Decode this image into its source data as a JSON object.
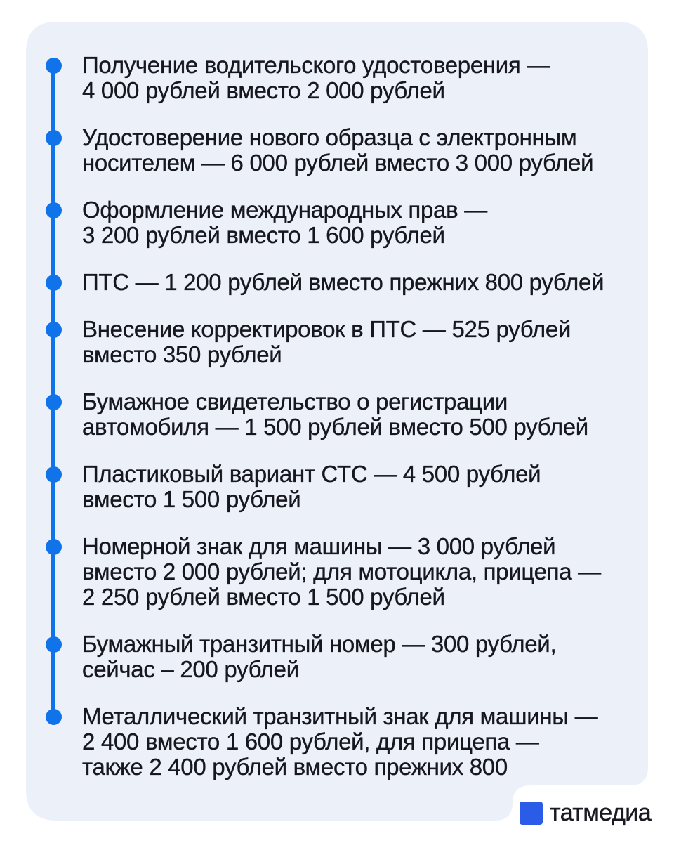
{
  "card": {
    "background_color": "#EBF0F9",
    "page_background_color": "#FFFFFF"
  },
  "timeline": {
    "dot_color": "#1173E9",
    "line_color": "#1173E9",
    "text_color": "#17171F"
  },
  "items": [
    {
      "text": "Получение водительского удостоверения —\n4 000 рублей вместо 2 000 рублей"
    },
    {
      "text": "Удостоверение нового образца с электронным\nносителем — 6 000 рублей вместо 3 000 рублей"
    },
    {
      "text": "Оформление международных прав —\n3 200 рублей вместо 1 600 рублей"
    },
    {
      "text": "ПТС — 1 200 рублей вместо прежних 800 рублей"
    },
    {
      "text": "Внесение корректировок в ПТС — 525 рублей\nвместо 350 рублей"
    },
    {
      "text": "Бумажное свидетельство о регистрации\nавтомобиля — 1 500 рублей вместо 500 рублей"
    },
    {
      "text": "Пластиковый вариант СТС — 4 500 рублей\nвместо 1 500 рублей"
    },
    {
      "text": "Номерной знак для машины — 3 000 рублей\nвместо 2 000 рублей; для мотоцикла, прицепа —\n2 250 рублей вместо 1 500 рублей"
    },
    {
      "text": "Бумажный транзитный номер — 300 рублей,\nсейчас – 200 рублей"
    },
    {
      "text": "Металлический транзитный знак для машины —\n2 400 вместо 1 600 рублей, для прицепа —\nтакже 2 400 рублей вместо прежних 800"
    }
  ],
  "footer_logo": {
    "label": "татмедиа",
    "square_color": "#2A5CE8"
  }
}
